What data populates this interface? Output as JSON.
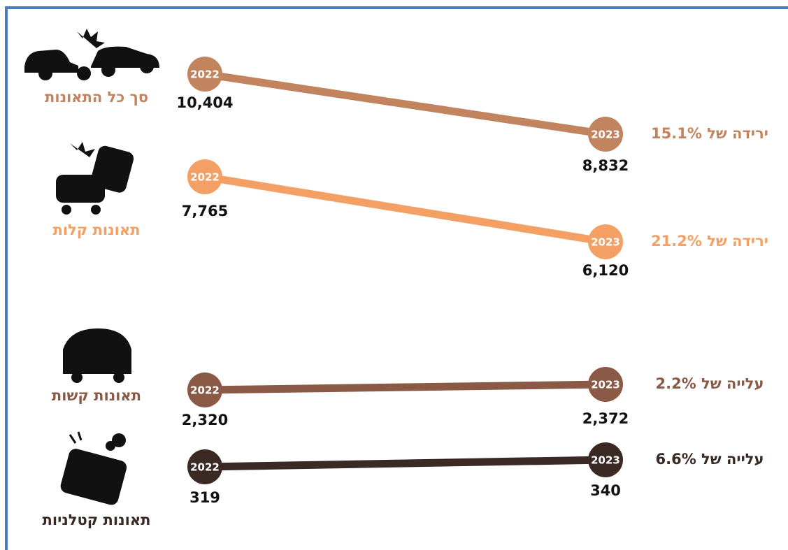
{
  "rows": [
    {
      "label": "סך כל התאונות",
      "start": {
        "year": "2022",
        "value": "10,404"
      },
      "end": {
        "year": "2023",
        "value": "8,832"
      },
      "change": "ירידה של 15.1%",
      "color": "#c1845f"
    },
    {
      "label": "תאונות קלות",
      "start": {
        "year": "2022",
        "value": "7,765"
      },
      "end": {
        "year": "2023",
        "value": "6,120"
      },
      "change": "ירידה של 21.2%",
      "color": "#f4a064"
    },
    {
      "label": "תאונות קשות",
      "start": {
        "year": "2022",
        "value": "2,320"
      },
      "end": {
        "year": "2023",
        "value": "2,372"
      },
      "change": "עלייה של 2.2%",
      "color": "#8a5a46"
    },
    {
      "label": "תאונות קטלניות",
      "start": {
        "year": "2022",
        "value": "319"
      },
      "end": {
        "year": "2023",
        "value": "340"
      },
      "change": "עלייה של 6.6%",
      "color": "#3b2a24"
    }
  ]
}
